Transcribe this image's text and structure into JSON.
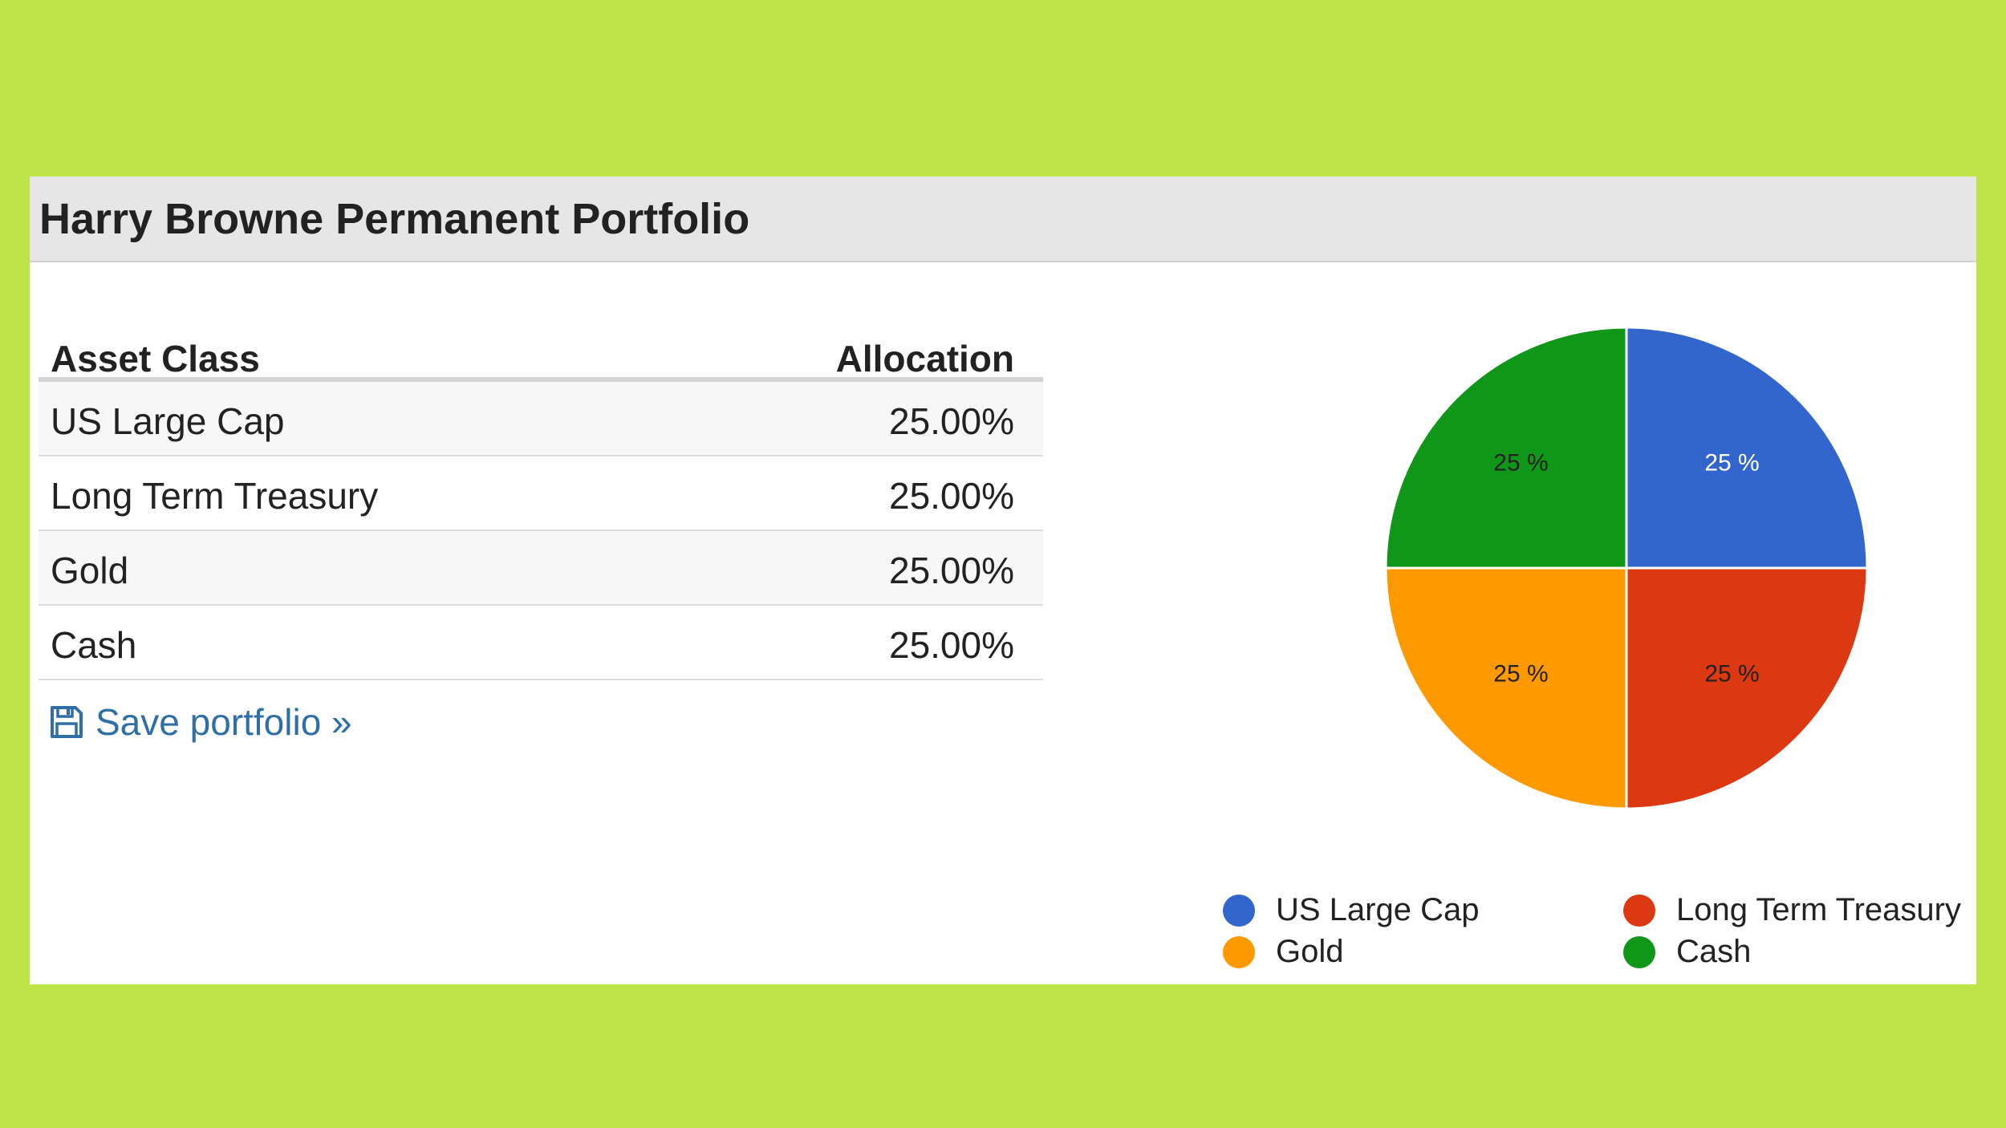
{
  "panel": {
    "title": "Harry Browne Permanent Portfolio"
  },
  "table": {
    "headers": {
      "asset_class": "Asset Class",
      "allocation": "Allocation"
    },
    "rows": [
      {
        "asset": "US Large Cap",
        "allocation": "25.00%"
      },
      {
        "asset": "Long Term Treasury",
        "allocation": "25.00%"
      },
      {
        "asset": "Gold",
        "allocation": "25.00%"
      },
      {
        "asset": "Cash",
        "allocation": "25.00%"
      }
    ]
  },
  "save_link": {
    "label": "Save portfolio »",
    "icon": "floppy-disk-icon"
  },
  "colors": {
    "page_background": "#bde547",
    "header_background": "#e6e6e6",
    "link": "#2f6fa6"
  },
  "chart_data": {
    "type": "pie",
    "categories": [
      "US Large Cap",
      "Long Term Treasury",
      "Gold",
      "Cash"
    ],
    "values": [
      25,
      25,
      25,
      25
    ],
    "slice_labels": [
      "25 %",
      "25 %",
      "25 %",
      "25 %"
    ],
    "colors": [
      "#3366cc",
      "#dc3912",
      "#ff9900",
      "#109618"
    ],
    "legend_position": "bottom",
    "legend": [
      "US Large Cap",
      "Long Term Treasury",
      "Gold",
      "Cash"
    ]
  }
}
